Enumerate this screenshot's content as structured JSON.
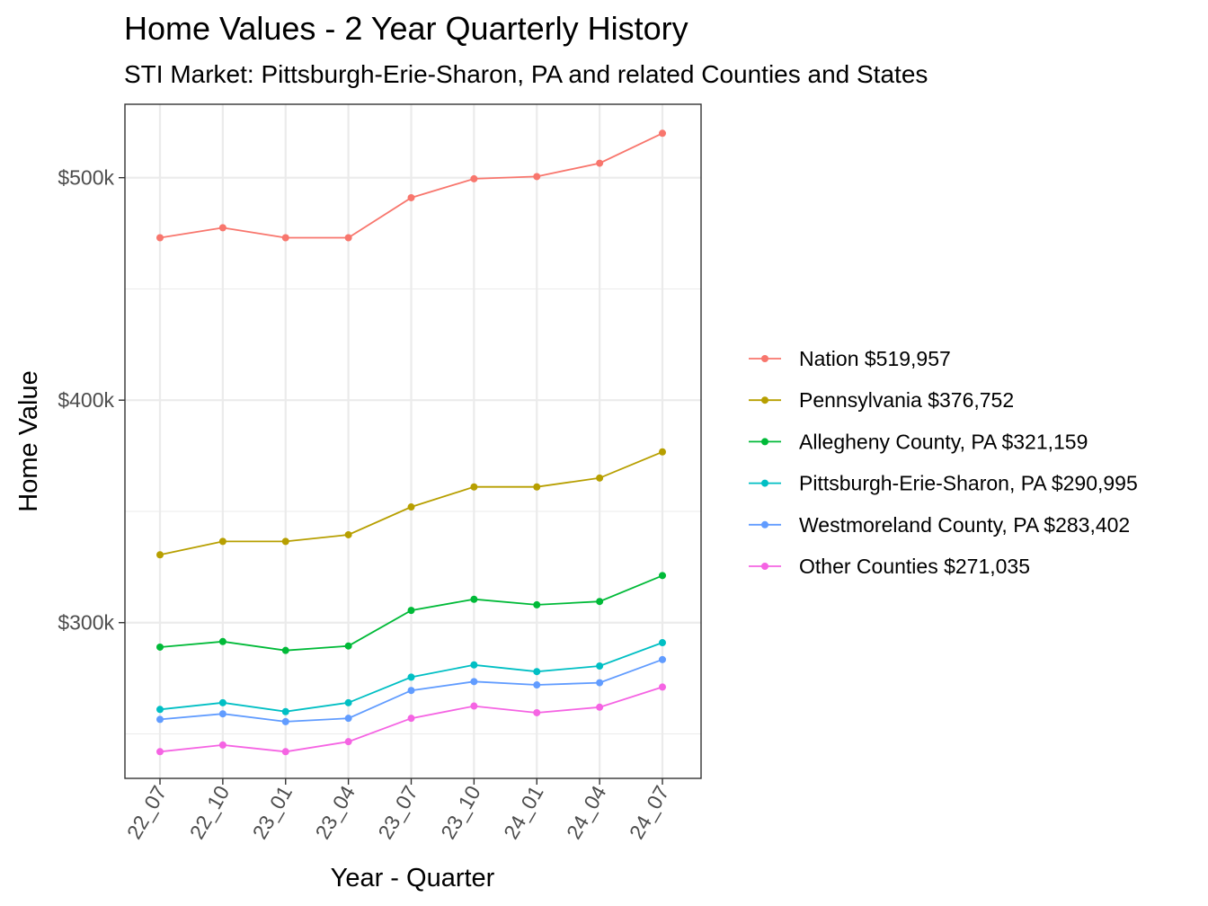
{
  "chart_data": {
    "type": "line",
    "title": "Home Values - 2 Year Quarterly History",
    "subtitle": "STI Market: Pittsburgh-Erie-Sharon, PA and related Counties and States",
    "xlabel": "Year - Quarter",
    "ylabel": "Home Value",
    "categories": [
      "22_07",
      "22_10",
      "23_01",
      "23_04",
      "23_07",
      "23_10",
      "24_01",
      "24_04",
      "24_07"
    ],
    "ylim": [
      230000,
      533000
    ],
    "y_ticks": [
      300000,
      400000,
      500000
    ],
    "y_tick_labels": [
      "$300k",
      "$400k",
      "$500k"
    ],
    "grid": true,
    "legend_position": "right",
    "series": [
      {
        "name": "Nation $519,957",
        "color": "#F8766D",
        "values": [
          473000,
          477500,
          473000,
          473000,
          491000,
          499500,
          500500,
          506500,
          519957
        ]
      },
      {
        "name": "Pennsylvania $376,752",
        "color": "#B79F00",
        "values": [
          330500,
          336500,
          336500,
          339500,
          352000,
          361000,
          361000,
          365000,
          376752
        ]
      },
      {
        "name": "Allegheny County, PA $321,159",
        "color": "#00BA38",
        "values": [
          289000,
          291500,
          287500,
          289500,
          305500,
          310500,
          308000,
          309500,
          321159
        ]
      },
      {
        "name": "Pittsburgh-Erie-Sharon, PA $290,995",
        "color": "#00BFC4",
        "values": [
          261000,
          264000,
          260000,
          264000,
          275500,
          281000,
          278000,
          280500,
          290995
        ]
      },
      {
        "name": "Westmoreland County, PA $283,402",
        "color": "#619CFF",
        "values": [
          256500,
          259000,
          255500,
          257000,
          269500,
          273500,
          272000,
          273000,
          283402
        ]
      },
      {
        "name": "Other Counties $271,035",
        "color": "#F564E3",
        "values": [
          242000,
          245000,
          242000,
          246500,
          257000,
          262500,
          259500,
          262000,
          271035
        ]
      }
    ]
  }
}
